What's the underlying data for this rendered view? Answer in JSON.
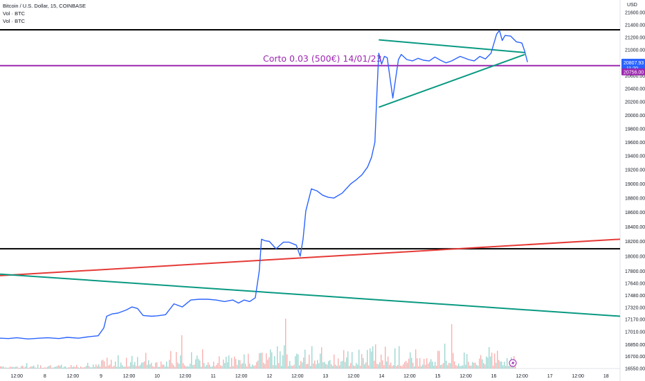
{
  "legend": {
    "line1": "Bitcoin / U.S. Dollar, 15, COINBASE",
    "line2": "Vol · BTC",
    "line3": "Vol · BTC"
  },
  "currency_label": "USD",
  "colors": {
    "price": "#2962ff",
    "black_line": "#000000",
    "red_line": "#e53935",
    "green_line": "#089981",
    "purple": "#9c27b0",
    "vol_up": "#26a69a",
    "vol_down": "#ef5350",
    "last_price_badge": "#2962ff"
  },
  "chart_data": {
    "type": "line",
    "title": "Bitcoin / U.S. Dollar, 15, COINBASE",
    "ylim": [
      16550,
      21800
    ],
    "y_scale": "log",
    "y_ticks": [
      "21600.00",
      "21400.00",
      "21200.00",
      "21000.00",
      "20800.00",
      "20600.00",
      "20400.00",
      "20200.00",
      "20000.00",
      "19800.00",
      "19600.00",
      "19400.00",
      "19200.00",
      "19000.00",
      "18800.00",
      "18600.00",
      "18400.00",
      "18200.00",
      "18000.00",
      "17800.00",
      "17640.00",
      "17480.00",
      "17320.00",
      "17170.00",
      "17010.00",
      "16850.00",
      "16700.00",
      "16550.00"
    ],
    "x_ticks": [
      "12:00",
      "8",
      "12:00",
      "9",
      "12:00",
      "10",
      "12:00",
      "11",
      "12:00",
      "12",
      "12:00",
      "13",
      "12:00",
      "14",
      "12:00",
      "15",
      "12:00",
      "16",
      "12:00",
      "17",
      "12:00",
      "18"
    ],
    "x_tick_positions": [
      0,
      0.5,
      1,
      1.5,
      2,
      2.5,
      3,
      3.5,
      4,
      4.5,
      5,
      5.5,
      6,
      6.5,
      7,
      7.5,
      8,
      8.5,
      9,
      9.5,
      10,
      10.5
    ],
    "xlim": [
      -0.3,
      10.75
    ],
    "series": [
      {
        "x": [
          -0.3,
          -0.15,
          0,
          0.2,
          0.4,
          0.55,
          0.75,
          0.9,
          1.1,
          1.3,
          1.45,
          1.55,
          1.6,
          1.7,
          1.8,
          1.95,
          2.05,
          2.15,
          2.25,
          2.4,
          2.5,
          2.65,
          2.8,
          2.95,
          3.1,
          3.25,
          3.4,
          3.55,
          3.7,
          3.85,
          3.95,
          4.05,
          4.15,
          4.25,
          4.32,
          4.36,
          4.42,
          4.5,
          4.62,
          4.75,
          4.85,
          4.98,
          5.05,
          5.1,
          5.15,
          5.25,
          5.35,
          5.45,
          5.55,
          5.65,
          5.8,
          5.95,
          6.05,
          6.15,
          6.25,
          6.32,
          6.38,
          6.42,
          6.45,
          6.5,
          6.55,
          6.6,
          6.7,
          6.8,
          6.85,
          6.95,
          7.05,
          7.15,
          7.25,
          7.35,
          7.45,
          7.55,
          7.65,
          7.75,
          7.9,
          8.05,
          8.15,
          8.25,
          8.35,
          8.45,
          8.55,
          8.6,
          8.65,
          8.7,
          8.8,
          8.9,
          9.0,
          9.05,
          9.1
        ],
        "y": [
          16930,
          16925,
          16935,
          16920,
          16930,
          16935,
          16925,
          16940,
          16930,
          16950,
          16960,
          17060,
          17210,
          17240,
          17250,
          17290,
          17330,
          17310,
          17220,
          17210,
          17215,
          17230,
          17370,
          17330,
          17420,
          17430,
          17430,
          17420,
          17400,
          17420,
          17380,
          17420,
          17400,
          17450,
          17800,
          18230,
          18210,
          18200,
          18100,
          18190,
          18190,
          18150,
          18000,
          18230,
          18620,
          18930,
          18900,
          18840,
          18810,
          18800,
          18870,
          19000,
          19060,
          19130,
          19240,
          19380,
          19600,
          20400,
          20950,
          20780,
          20900,
          20880,
          20260,
          20850,
          20930,
          20850,
          20830,
          20870,
          20840,
          20830,
          20890,
          20840,
          20800,
          20830,
          20900,
          20850,
          20830,
          20900,
          20860,
          20950,
          21250,
          21310,
          21150,
          21230,
          21220,
          21130,
          21110,
          20980,
          20810
        ]
      }
    ],
    "hlines": [
      {
        "y": 21320,
        "color": "black"
      },
      {
        "y": 18100,
        "color": "black"
      },
      {
        "y": 20756,
        "color": "purple"
      }
    ],
    "trendlines": [
      {
        "color": "red",
        "x": [
          -0.3,
          10.75
        ],
        "y": [
          17740,
          18230
        ]
      },
      {
        "color": "green",
        "x": [
          -0.3,
          10.75
        ],
        "y": [
          17760,
          17210
        ]
      },
      {
        "color": "green",
        "x": [
          6.45,
          9.05
        ],
        "y": [
          21160,
          20960
        ]
      },
      {
        "color": "green",
        "x": [
          6.45,
          9.05
        ],
        "y": [
          20120,
          20930
        ]
      }
    ],
    "annotation": "Corto 0.03 (500€) 14/01/23",
    "price_labels": {
      "last_price": "20807.93",
      "countdown": "11:20",
      "line_price": "20756.00"
    }
  }
}
